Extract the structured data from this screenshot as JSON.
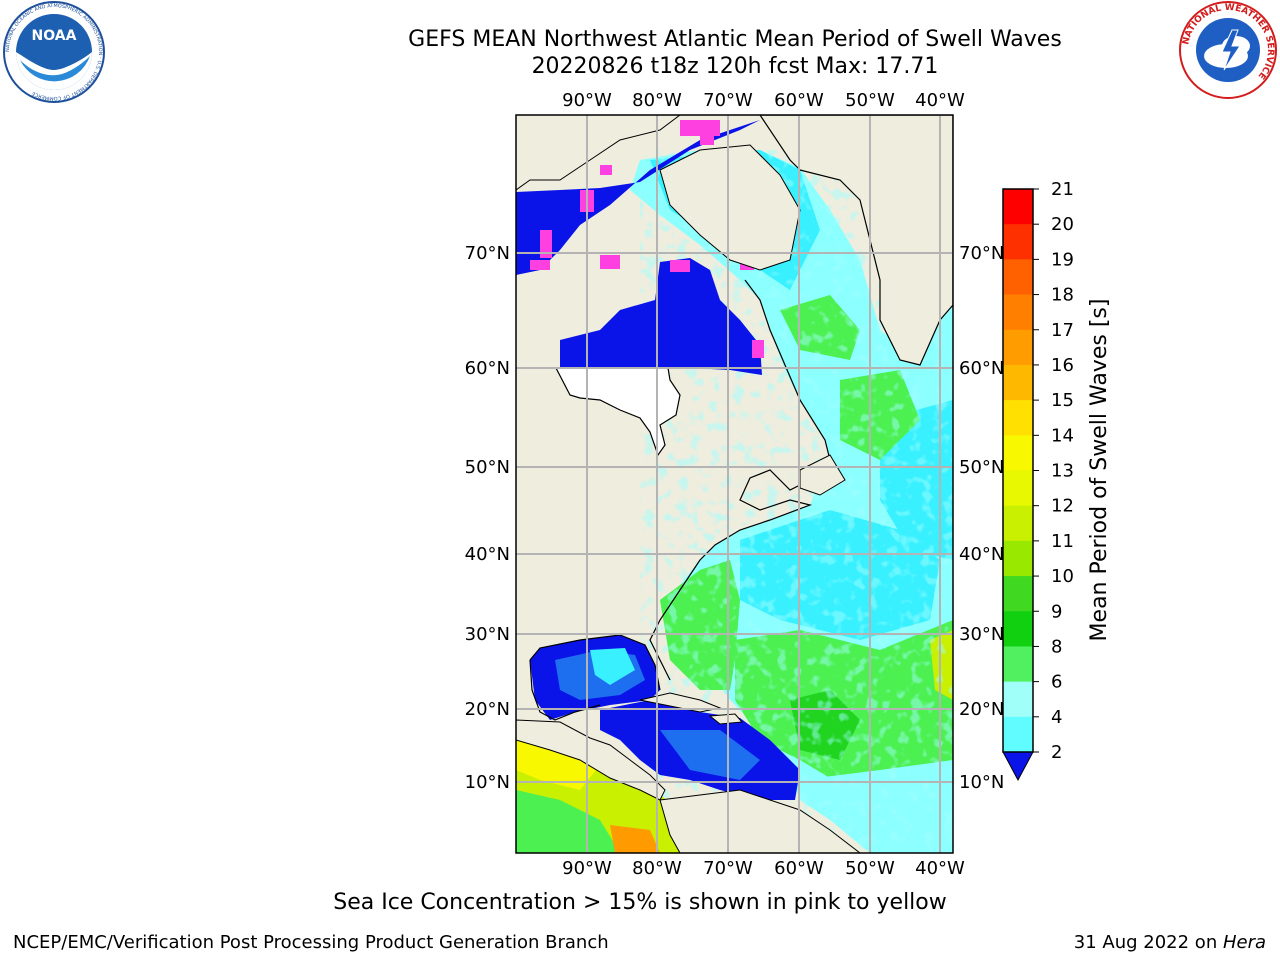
{
  "header": {
    "title_line1": "GEFS MEAN Northwest Atlantic Mean Period of Swell Waves",
    "title_line2": "20220826 t18z 120h fcst   Max: 17.71"
  },
  "logos": {
    "noaa": {
      "text": "NOAA",
      "ring_text": "NATIONAL OCEANIC AND ATMOSPHERIC ADMINISTRATION · U.S. DEPARTMENT OF COMMERCE"
    },
    "nws": {
      "ring_text": "NATIONAL WEATHER SERVICE"
    }
  },
  "map": {
    "lon_labels_top": [
      "90°W",
      "80°W",
      "70°W",
      "60°W",
      "50°W",
      "40°W"
    ],
    "lon_labels_bottom": [
      "90°W",
      "80°W",
      "70°W",
      "60°W",
      "50°W",
      "40°W"
    ],
    "lat_labels_left": [
      "70°N",
      "60°N",
      "50°N",
      "40°N",
      "30°N",
      "20°N",
      "10°N"
    ],
    "lat_labels_right": [
      "70°N",
      "60°N",
      "50°N",
      "40°N",
      "30°N",
      "20°N",
      "10°N"
    ],
    "colors": {
      "land": "#efedde",
      "deep_blue": "#0a14e8",
      "mid_blue": "#1e6ef0",
      "cyan": "#38f0ff",
      "light_cyan": "#8cffff",
      "green": "#4cf050",
      "bright_green": "#20d420",
      "yellow_green": "#c8f000",
      "yellow": "#f8f800",
      "orange": "#ff9a00",
      "ice_pink": "#ff40e0",
      "grid": "#b4b4b4"
    }
  },
  "colorbar": {
    "label": "Mean Period of Swell Waves [s]",
    "ticks": [
      "21",
      "20",
      "19",
      "18",
      "17",
      "16",
      "15",
      "14",
      "13",
      "12",
      "11",
      "10",
      "9",
      "8",
      "6",
      "4",
      "2"
    ],
    "colors": [
      "#ff0000",
      "#ff3000",
      "#ff6000",
      "#ff8000",
      "#ff9c00",
      "#ffb800",
      "#ffe000",
      "#f8f800",
      "#e8f800",
      "#c8f000",
      "#98e800",
      "#40d820",
      "#10d010",
      "#50f060",
      "#a0fff8",
      "#60fcff",
      "#10f0ff",
      "#0090ff",
      "#0050f8",
      "#0a14e8"
    ]
  },
  "footer": {
    "note": "Sea Ice Concentration > 15% is shown in pink to yellow",
    "left": "NCEP/EMC/Verification Post Processing Product Generation Branch",
    "right_prefix": "31 Aug 2022 on ",
    "right_host": "Hera"
  }
}
